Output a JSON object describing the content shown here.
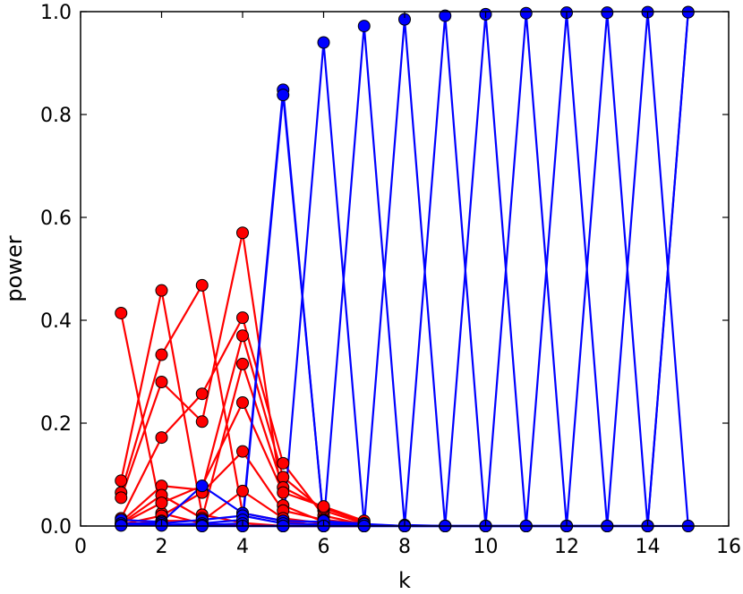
{
  "chart_data": {
    "type": "line",
    "xlabel": "k",
    "ylabel": "power",
    "xlim": [
      0,
      16
    ],
    "ylim": [
      0,
      1.0
    ],
    "xticks": [
      0,
      2,
      4,
      6,
      8,
      10,
      12,
      14,
      16
    ],
    "yticks": [
      0.0,
      0.2,
      0.4,
      0.6,
      0.8,
      1.0
    ],
    "xtick_labels": [
      "0",
      "2",
      "4",
      "6",
      "8",
      "10",
      "12",
      "14",
      "16"
    ],
    "ytick_labels": [
      "0.0",
      "0.2",
      "0.4",
      "0.6",
      "0.8",
      "1.0"
    ],
    "grid": false,
    "colors": {
      "red": "#ff0000",
      "blue": "#0000ff"
    },
    "series": [
      {
        "color": "red",
        "x": [
          1,
          2,
          3,
          4,
          5,
          6,
          7
        ],
        "y": [
          0.414,
          0.025,
          0.005,
          0.001,
          0.0,
          0.0,
          0.0
        ]
      },
      {
        "color": "red",
        "x": [
          1,
          2,
          3,
          4,
          5,
          6,
          7
        ],
        "y": [
          0.088,
          0.458,
          0.022,
          0.006,
          0.0,
          0.0,
          0.0
        ]
      },
      {
        "color": "red",
        "x": [
          1,
          2,
          3,
          4,
          5,
          6,
          7
        ],
        "y": [
          0.065,
          0.333,
          0.468,
          0.025,
          0.01,
          0.0,
          0.0
        ]
      },
      {
        "color": "red",
        "x": [
          1,
          2,
          3,
          4,
          5,
          6,
          7
        ],
        "y": [
          0.055,
          0.28,
          0.203,
          0.57,
          0.04,
          0.008,
          0.0
        ]
      },
      {
        "color": "red",
        "x": [
          1,
          2,
          3,
          4,
          5,
          6,
          7
        ],
        "y": [
          0.015,
          0.172,
          0.257,
          0.405,
          0.122,
          0.02,
          0.003
        ]
      },
      {
        "color": "red",
        "x": [
          1,
          2,
          3,
          4,
          5,
          6,
          7
        ],
        "y": [
          0.008,
          0.078,
          0.07,
          0.37,
          0.095,
          0.03,
          0.005
        ]
      },
      {
        "color": "red",
        "x": [
          1,
          2,
          3,
          4,
          5,
          6,
          7
        ],
        "y": [
          0.005,
          0.06,
          0.015,
          0.315,
          0.075,
          0.035,
          0.008
        ]
      },
      {
        "color": "red",
        "x": [
          1,
          2,
          3,
          4,
          5,
          6,
          7
        ],
        "y": [
          0.004,
          0.045,
          0.078,
          0.24,
          0.065,
          0.038,
          0.01
        ]
      },
      {
        "color": "red",
        "x": [
          1,
          2,
          3,
          4,
          5,
          6,
          7
        ],
        "y": [
          0.003,
          0.02,
          0.065,
          0.145,
          0.03,
          0.012,
          0.005
        ]
      },
      {
        "color": "red",
        "x": [
          1,
          2,
          3,
          4,
          5,
          6,
          7
        ],
        "y": [
          0.002,
          0.01,
          0.01,
          0.068,
          0.015,
          0.005,
          0.002
        ]
      },
      {
        "color": "blue",
        "x": [
          1,
          2,
          3,
          4,
          5,
          6,
          7
        ],
        "y": [
          0.012,
          0.008,
          0.078,
          0.025,
          0.01,
          0.008,
          0.005
        ]
      },
      {
        "color": "blue",
        "x": [
          1,
          2,
          3,
          4,
          5,
          6,
          7
        ],
        "y": [
          0.005,
          0.005,
          0.012,
          0.02,
          0.005,
          0.003,
          0.002
        ]
      },
      {
        "color": "blue",
        "x": [
          1,
          2,
          3,
          4,
          5,
          6,
          7,
          8
        ],
        "y": [
          0.002,
          0.002,
          0.005,
          0.012,
          0.848,
          0.008,
          0.002,
          0.0
        ]
      },
      {
        "color": "blue",
        "x": [
          1,
          2,
          3,
          4,
          5,
          6,
          7,
          8
        ],
        "y": [
          0.001,
          0.001,
          0.002,
          0.005,
          0.838,
          0.01,
          0.003,
          0.0
        ]
      },
      {
        "color": "blue",
        "x": [
          3,
          4,
          5,
          6,
          7,
          8,
          9
        ],
        "y": [
          0.0,
          0.0,
          0.0,
          0.94,
          0.004,
          0.0,
          0.0
        ]
      },
      {
        "color": "blue",
        "x": [
          3,
          4,
          5,
          6,
          7,
          8,
          9
        ],
        "y": [
          0.0,
          0.0,
          0.0,
          0.0,
          0.972,
          0.002,
          0.0
        ]
      },
      {
        "color": "blue",
        "x": [
          4,
          5,
          6,
          7,
          8,
          9,
          10
        ],
        "y": [
          0.0,
          0.0,
          0.0,
          0.0,
          0.985,
          0.0,
          0.0
        ]
      },
      {
        "color": "blue",
        "x": [
          5,
          6,
          7,
          8,
          9,
          10,
          11
        ],
        "y": [
          0.0,
          0.0,
          0.0,
          0.0,
          0.992,
          0.0,
          0.0
        ]
      },
      {
        "color": "blue",
        "x": [
          6,
          7,
          8,
          9,
          10,
          11,
          12
        ],
        "y": [
          0.0,
          0.0,
          0.0,
          0.0,
          0.995,
          0.0,
          0.0
        ]
      },
      {
        "color": "blue",
        "x": [
          7,
          8,
          9,
          10,
          11,
          12,
          13
        ],
        "y": [
          0.0,
          0.0,
          0.0,
          0.0,
          0.997,
          0.0,
          0.0
        ]
      },
      {
        "color": "blue",
        "x": [
          8,
          9,
          10,
          11,
          12,
          13,
          14
        ],
        "y": [
          0.0,
          0.0,
          0.0,
          0.0,
          0.998,
          0.0,
          0.0
        ]
      },
      {
        "color": "blue",
        "x": [
          9,
          10,
          11,
          12,
          13,
          14,
          15
        ],
        "y": [
          0.0,
          0.0,
          0.0,
          0.0,
          0.998,
          0.0,
          0.0
        ]
      },
      {
        "color": "blue",
        "x": [
          10,
          11,
          12,
          13,
          14,
          15
        ],
        "y": [
          0.0,
          0.0,
          0.0,
          0.0,
          0.999,
          0.0
        ]
      },
      {
        "color": "blue",
        "x": [
          11,
          12,
          13,
          14,
          15
        ],
        "y": [
          0.0,
          0.0,
          0.0,
          0.0,
          0.999
        ]
      },
      {
        "color": "blue",
        "x": [
          12,
          13,
          14,
          15
        ],
        "y": [
          0.0,
          0.0,
          0.0,
          0.999
        ]
      }
    ]
  }
}
